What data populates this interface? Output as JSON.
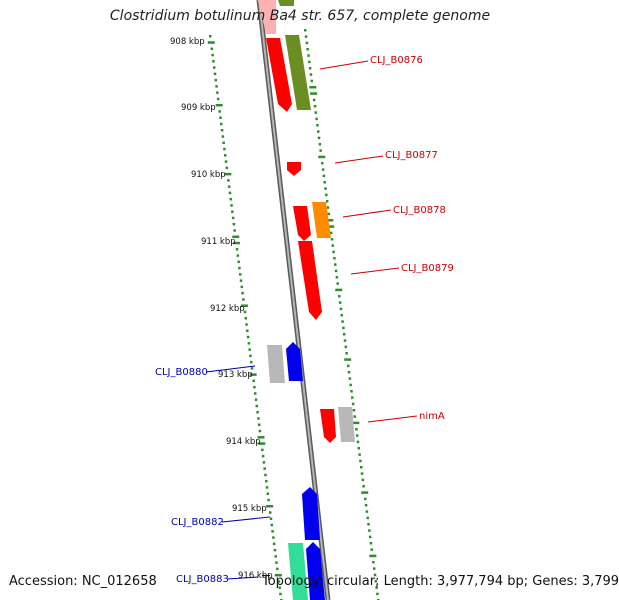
{
  "title": "Clostridium botulinum Ba4 str. 657, complete genome",
  "footer": {
    "accession": "Accession: NC_012658",
    "summary": "Topology: circular; Length: 3,977,794 bp; Genes: 3,799"
  },
  "ticks": [
    "908 kbp",
    "909 kbp",
    "910 kbp",
    "911 kbp",
    "912 kbp",
    "913 kbp",
    "914 kbp",
    "915 kbp",
    "916 kbp"
  ],
  "gene_labels_right": [
    "CLJ_B0876",
    "CLJ_B0877",
    "CLJ_B0878",
    "CLJ_B0879",
    "nimA"
  ],
  "gene_labels_left": [
    "CLJ_B0880",
    "CLJ_B0882",
    "CLJ_B0883"
  ],
  "colors": {
    "backbone": "#8a8a8a",
    "tick_dash": "#2e8b2e",
    "label_right": "#cc0000",
    "label_left": "#0000aa",
    "gene_red": "#ff0000",
    "gene_olive": "#6b8e23",
    "gene_orange": "#ff8c00",
    "gene_blue": "#0000ee",
    "gene_gray": "#b8b8b8",
    "gene_green": "#33dd99",
    "gene_pink": "#ffb0b0"
  }
}
